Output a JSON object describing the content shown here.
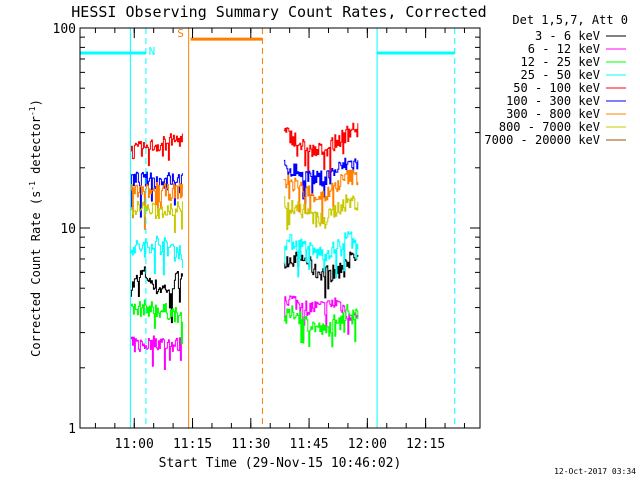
{
  "chart_data": {
    "type": "line",
    "title": "HESSI Observing Summary Count Rates, Corrected",
    "xlabel": "Start Time (29-Nov-15 10:46:02)",
    "ylabel_main": "Corrected Count Rate (s",
    "ylabel_sup1": "-1",
    "ylabel_mid": " detector",
    "ylabel_sup2": "-1",
    "ylabel_end": ")",
    "yscale": "log",
    "ylim": [
      1,
      100
    ],
    "xlim": [
      "10:46:02",
      "12:29:00"
    ],
    "x_tick_labels": [
      "11:00",
      "11:15",
      "11:30",
      "11:45",
      "12:00",
      "12:15"
    ],
    "y_tick_labels": [
      "1",
      "10",
      "100"
    ],
    "legend_header": "Det 1,5,7, Att 0",
    "legend_position": "top-right",
    "timestamp": "12-Oct-2017 03:34",
    "series": [
      {
        "name": "3 - 6 keV",
        "color": "#000000",
        "segments": [
          {
            "t": [
              "10:59:00",
              "11:12:30"
            ],
            "level": [
              5.0,
              6.0,
              5.0,
              5.0,
              6.0
            ]
          },
          {
            "t": [
              "11:38:30",
              "11:57:30"
            ],
            "level": [
              7.0,
              7.0,
              7.0,
              6.0,
              6.0,
              6.0,
              7.0,
              7.0
            ]
          }
        ]
      },
      {
        "name": "6 - 12 keV",
        "color": "#ff00ff",
        "segments": [
          {
            "t": [
              "10:59:00",
              "11:12:30"
            ],
            "level": [
              2.6,
              2.6,
              2.7,
              2.6,
              2.6
            ]
          },
          {
            "t": [
              "11:38:30",
              "11:57:30"
            ],
            "level": [
              4.5,
              4.3,
              4.0,
              4.0,
              4.0,
              4.3,
              3.8,
              3.5
            ]
          }
        ]
      },
      {
        "name": "12 - 25 keV",
        "color": "#00ff00",
        "segments": [
          {
            "t": [
              "10:59:00",
              "11:12:30"
            ],
            "level": [
              3.8,
              4.0,
              3.9,
              3.8,
              3.6
            ]
          },
          {
            "t": [
              "11:38:30",
              "11:57:30"
            ],
            "level": [
              3.5,
              3.8,
              3.4,
              3.2,
              3.0,
              3.6,
              3.8,
              3.8
            ]
          }
        ]
      },
      {
        "name": "25 - 50 keV",
        "color": "#00ffff",
        "segments": [
          {
            "t": [
              "10:59:00",
              "11:12:30"
            ],
            "level": [
              8.0,
              8.0,
              8.5,
              8.0,
              7.5
            ]
          },
          {
            "t": [
              "11:38:30",
              "11:57:30"
            ],
            "level": [
              8.5,
              8.5,
              8.0,
              7.5,
              7.5,
              8.0,
              9.0,
              9.0
            ]
          }
        ]
      },
      {
        "name": "50 - 100 keV",
        "color": "#ff0000",
        "segments": [
          {
            "t": [
              "10:59:00",
              "11:12:30"
            ],
            "level": [
              24,
              25,
              26,
              27,
              28
            ]
          },
          {
            "t": [
              "11:38:30",
              "11:57:30"
            ],
            "level": [
              30,
              28,
              25,
              24,
              25,
              27,
              30,
              33
            ]
          }
        ]
      },
      {
        "name": "100 - 300 keV",
        "color": "#0000ff",
        "segments": [
          {
            "t": [
              "10:59:00",
              "11:12:30"
            ],
            "level": [
              17.5,
              17.5,
              17.0,
              17.5,
              17.5
            ]
          },
          {
            "t": [
              "11:38:30",
              "11:57:30"
            ],
            "level": [
              20,
              19.5,
              18.5,
              17.5,
              18,
              19.5,
              21,
              21
            ]
          }
        ]
      },
      {
        "name": "300 - 800 keV",
        "color": "#ff8000",
        "segments": [
          {
            "t": [
              "10:59:00",
              "11:12:30"
            ],
            "level": [
              15.5,
              15,
              15.5,
              15,
              15.5
            ]
          },
          {
            "t": [
              "11:38:30",
              "11:57:30"
            ],
            "level": [
              17,
              16.5,
              15.5,
              14.5,
              14.5,
              16.5,
              18,
              18
            ]
          }
        ]
      },
      {
        "name": "800 - 7000 keV",
        "color": "#c8c800",
        "segments": [
          {
            "t": [
              "10:59:00",
              "11:12:30"
            ],
            "level": [
              12.5,
              12.5,
              12,
              12.5,
              12.5
            ]
          },
          {
            "t": [
              "11:38:30",
              "11:57:30"
            ],
            "level": [
              13.5,
              13,
              12,
              11,
              11,
              12.5,
              13.5,
              13.5
            ]
          }
        ]
      },
      {
        "name": "7000 - 20000 keV",
        "color": "#a05000",
        "segments": []
      }
    ],
    "markers": [
      {
        "label": "N",
        "color": "#00ffff",
        "t_start": "10:46:02",
        "t_end": "11:03:00",
        "y": 75
      },
      {
        "label": "",
        "color": "#00ffff",
        "t_start": "12:02:30",
        "t_end": "12:22:30",
        "y": 75
      },
      {
        "label": "S",
        "color": "#ff8000",
        "t_start": "11:14:30",
        "t_end": "11:33:00",
        "y": 88
      }
    ],
    "vertical_lines": [
      {
        "t": "10:59:00",
        "color": "#00ffff",
        "style": "solid"
      },
      {
        "t": "11:03:00",
        "color": "#00ffff",
        "style": "dashed"
      },
      {
        "t": "11:14:00",
        "color": "#ff8000",
        "style": "solid"
      },
      {
        "t": "11:33:00",
        "color": "#ff8000",
        "style": "dashed"
      },
      {
        "t": "12:02:30",
        "color": "#00ffff",
        "style": "solid"
      },
      {
        "t": "12:22:30",
        "color": "#00ffff",
        "style": "dashed"
      }
    ]
  }
}
